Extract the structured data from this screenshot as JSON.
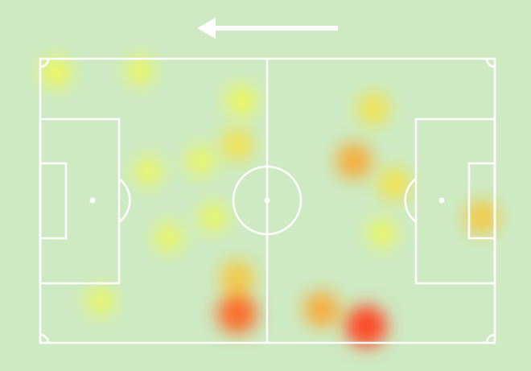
{
  "chart_data": {
    "type": "heatmap",
    "x": [
      45.5,
      75.3,
      65,
      45.5,
      72.5,
      77,
      102,
      45.5,
      3.7,
      23,
      29.7,
      13.9,
      81.8,
      79,
      37,
      25,
      40,
      46.5
    ],
    "y": [
      61,
      64,
      60,
      52.4,
      24.5,
      12,
      38,
      20.6,
      3.3,
      2.9,
      42.8,
      58,
      30,
      41.8,
      24.5,
      27,
      38,
      10
    ],
    "values": [
      9,
      10,
      7,
      6,
      7,
      5,
      6,
      5,
      4,
      3,
      3,
      3,
      5,
      3,
      3,
      3,
      3,
      4
    ],
    "xlim": [
      0,
      105
    ],
    "ylim": [
      0,
      68
    ]
  }
}
